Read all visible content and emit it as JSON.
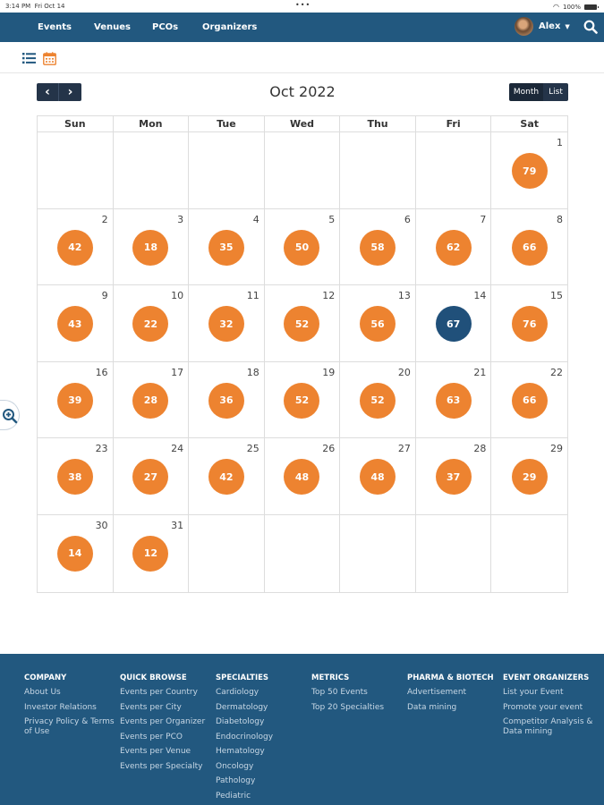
{
  "status_bar": {
    "time": "3:14 PM",
    "date": "Fri Oct 14",
    "dots": "•••",
    "battery": "100%"
  },
  "navbar": {
    "links": [
      "Events",
      "Venues",
      "PCOs",
      "Organizers"
    ],
    "user_name": "Alex",
    "search_icon": "search-icon",
    "colors": {
      "background": "#22587f"
    }
  },
  "view_toggle": {
    "list_icon": "list-icon",
    "calendar_icon": "calendar-icon"
  },
  "calendar": {
    "title": "Oct 2022",
    "prev_symbol": "‹",
    "next_symbol": "›",
    "view_buttons": {
      "month": "Month",
      "list": "List"
    },
    "weekdays": [
      "Sun",
      "Mon",
      "Tue",
      "Wed",
      "Thu",
      "Fri",
      "Sat"
    ],
    "weeks": [
      [
        null,
        null,
        null,
        null,
        null,
        null,
        {
          "day": "1",
          "count": "79"
        }
      ],
      [
        {
          "day": "2",
          "count": "42"
        },
        {
          "day": "3",
          "count": "18"
        },
        {
          "day": "4",
          "count": "35"
        },
        {
          "day": "5",
          "count": "50"
        },
        {
          "day": "6",
          "count": "58"
        },
        {
          "day": "7",
          "count": "62"
        },
        {
          "day": "8",
          "count": "66"
        }
      ],
      [
        {
          "day": "9",
          "count": "43"
        },
        {
          "day": "10",
          "count": "22"
        },
        {
          "day": "11",
          "count": "32"
        },
        {
          "day": "12",
          "count": "52"
        },
        {
          "day": "13",
          "count": "56"
        },
        {
          "day": "14",
          "count": "67",
          "today": true
        },
        {
          "day": "15",
          "count": "76"
        }
      ],
      [
        {
          "day": "16",
          "count": "39"
        },
        {
          "day": "17",
          "count": "28"
        },
        {
          "day": "18",
          "count": "36"
        },
        {
          "day": "19",
          "count": "52"
        },
        {
          "day": "20",
          "count": "52"
        },
        {
          "day": "21",
          "count": "63"
        },
        {
          "day": "22",
          "count": "66"
        }
      ],
      [
        {
          "day": "23",
          "count": "38"
        },
        {
          "day": "24",
          "count": "27"
        },
        {
          "day": "25",
          "count": "42"
        },
        {
          "day": "26",
          "count": "48"
        },
        {
          "day": "27",
          "count": "48"
        },
        {
          "day": "28",
          "count": "37"
        },
        {
          "day": "29",
          "count": "29"
        }
      ],
      [
        {
          "day": "30",
          "count": "14"
        },
        {
          "day": "31",
          "count": "12"
        },
        null,
        null,
        null,
        null,
        null
      ]
    ],
    "colors": {
      "badge": "#ed8330",
      "today_badge": "#20507a",
      "nav_buttons": "#243449"
    }
  },
  "zoom_button": {
    "icon": "zoom-in-icon"
  },
  "footer": {
    "columns": [
      {
        "title": "COMPANY",
        "links": [
          "About Us",
          "Investor Relations",
          "Privacy Policy & Terms of Use"
        ]
      },
      {
        "title": "QUICK BROWSE",
        "links": [
          "Events per Country",
          "Events per City",
          "Events per Organizer",
          "Events per PCO",
          "Events per Venue",
          "Events per Specialty"
        ]
      },
      {
        "title": "SPECIALTIES",
        "links": [
          "Cardiology",
          "Dermatology",
          "Diabetology",
          "Endocrinology",
          "Hematology",
          "Oncology",
          "Pathology",
          "Pediatric"
        ]
      },
      {
        "title": "METRICS",
        "links": [
          "Top 50 Events",
          "Top 20 Specialties"
        ]
      },
      {
        "title": "PHARMA & BIOTECH",
        "links": [
          "Advertisement",
          "Data mining"
        ]
      },
      {
        "title": "EVENT ORGANIZERS",
        "links": [
          "List your Event",
          "Promote your event",
          "Competitor Analysis & Data mining"
        ]
      }
    ]
  }
}
